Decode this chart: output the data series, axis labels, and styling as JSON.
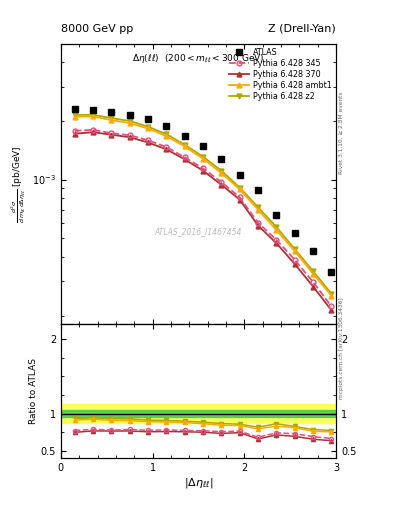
{
  "title_left": "8000 GeV pp",
  "title_right": "Z (Drell-Yan)",
  "subtitle": "Δη(ℓℓ) (200 < m_{ll} < 300 GeV)",
  "watermark": "ATLAS_2016_I1467454",
  "right_label_top": "Rivet 3.1.10, ≥ 2.8M events",
  "right_label_bottom": "mcplots.cern.ch [arXiv:1306.3436]",
  "ylabel_ratio": "Ratio to ATLAS",
  "x_data": [
    0.15,
    0.35,
    0.55,
    0.75,
    0.95,
    1.15,
    1.35,
    1.55,
    1.75,
    1.95,
    2.15,
    2.35,
    2.55,
    2.75,
    2.95
  ],
  "atlas_y": [
    0.0023,
    0.00228,
    0.00222,
    0.00215,
    0.00205,
    0.00188,
    0.00168,
    0.00148,
    0.00128,
    0.00106,
    0.00088,
    0.00066,
    0.00053,
    0.00043,
    0.000335
  ],
  "p345_y": [
    0.00178,
    0.0018,
    0.00173,
    0.00169,
    0.00159,
    0.00147,
    0.0013,
    0.00114,
    0.00097,
    0.00081,
    0.0006,
    0.00049,
    0.000387,
    0.000297,
    0.000223
  ],
  "p370_y": [
    0.00172,
    0.00175,
    0.0017,
    0.00165,
    0.00155,
    0.00143,
    0.00127,
    0.00111,
    0.00094,
    0.000788,
    0.00058,
    0.000471,
    0.000368,
    0.000282,
    0.000213
  ],
  "pambt1_y": [
    0.0021,
    0.00211,
    0.00202,
    0.00195,
    0.00183,
    0.00167,
    0.00148,
    0.00128,
    0.00108,
    0.00089,
    0.0007,
    0.00055,
    0.000429,
    0.000328,
    0.000253
  ],
  "pz2_y": [
    0.00215,
    0.00215,
    0.00207,
    0.002,
    0.00187,
    0.00171,
    0.00151,
    0.00131,
    0.00111,
    0.00091,
    0.00072,
    0.00057,
    0.000439,
    0.000338,
    0.000259
  ],
  "ratio_p345": [
    0.773,
    0.789,
    0.779,
    0.787,
    0.776,
    0.782,
    0.774,
    0.77,
    0.758,
    0.764,
    0.682,
    0.742,
    0.73,
    0.691,
    0.665
  ],
  "ratio_p370": [
    0.748,
    0.768,
    0.766,
    0.767,
    0.756,
    0.76,
    0.756,
    0.75,
    0.734,
    0.744,
    0.659,
    0.714,
    0.694,
    0.656,
    0.636
  ],
  "ratio_pambt1": [
    0.913,
    0.925,
    0.91,
    0.907,
    0.893,
    0.888,
    0.881,
    0.865,
    0.844,
    0.84,
    0.795,
    0.833,
    0.81,
    0.763,
    0.755
  ],
  "ratio_pz2": [
    0.935,
    0.943,
    0.932,
    0.93,
    0.912,
    0.909,
    0.899,
    0.885,
    0.867,
    0.858,
    0.818,
    0.864,
    0.828,
    0.786,
    0.773
  ],
  "band_green_lo": 0.95,
  "band_green_hi": 1.05,
  "band_yellow_lo": 0.87,
  "band_yellow_hi": 1.13,
  "color_atlas": "#000000",
  "color_p345": "#e05080",
  "color_p370": "#aa3333",
  "color_pambt1": "#ffaa00",
  "color_pz2": "#aaaa00",
  "color_band_green": "#44cc44",
  "color_band_yellow": "#ffff44",
  "ylim_main": [
    0.00018,
    0.005
  ],
  "yticks_main_log": [
    -2,
    -3
  ],
  "ylim_ratio": [
    0.4,
    2.2
  ],
  "yticks_ratio": [
    0.5,
    1.0,
    2.0
  ],
  "bg_color": "#ffffff"
}
